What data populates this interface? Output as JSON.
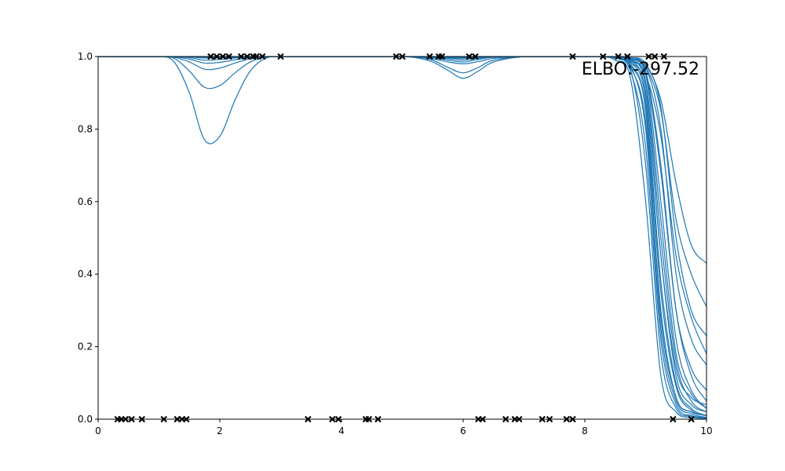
{
  "chart_data": {
    "type": "line",
    "title": "",
    "xlabel": "",
    "ylabel": "",
    "xlim": [
      0,
      10
    ],
    "ylim": [
      0.0,
      1.0
    ],
    "xticks": [
      0,
      2,
      4,
      6,
      8,
      10
    ],
    "xtick_labels": [
      "0",
      "2",
      "4",
      "6",
      "8",
      "10"
    ],
    "yticks": [
      0.0,
      0.2,
      0.4,
      0.6,
      0.8,
      1.0
    ],
    "ytick_labels": [
      "0.0",
      "0.2",
      "0.4",
      "0.6",
      "0.8",
      "1.0"
    ],
    "grid": false,
    "annotation": "ELBO:-297.52",
    "annotation_placement": "top-right",
    "curve_color": "#1f77b4",
    "marker_color": "#000000",
    "marker_style": "x",
    "observations": {
      "y1": [
        1.85,
        1.95,
        2.05,
        2.15,
        2.35,
        2.45,
        2.55,
        2.6,
        2.7,
        3.0,
        4.9,
        5.0,
        5.45,
        5.6,
        5.65,
        6.1,
        6.2,
        7.8,
        8.3,
        8.55,
        8.7,
        9.05,
        9.15,
        9.3
      ],
      "y0": [
        0.32,
        0.38,
        0.45,
        0.55,
        0.72,
        1.08,
        1.3,
        1.38,
        1.45,
        3.45,
        3.85,
        3.95,
        4.4,
        4.45,
        4.6,
        6.25,
        6.32,
        6.7,
        6.85,
        6.92,
        7.3,
        7.42,
        7.7,
        7.8,
        9.45,
        9.75
      ]
    },
    "x": [
      0,
      0.5,
      1.0,
      1.25,
      1.5,
      1.75,
      2.0,
      2.25,
      2.5,
      2.75,
      3.0,
      3.5,
      4.0,
      4.5,
      5.0,
      5.25,
      5.5,
      5.75,
      6.0,
      6.25,
      6.5,
      7.0,
      7.5,
      8.0,
      8.25,
      8.5,
      8.75,
      9.0,
      9.25,
      9.5,
      9.75,
      10.0
    ],
    "series": [
      {
        "values": [
          1,
          1,
          1.0,
          0.985,
          0.9,
          0.77,
          0.78,
          0.88,
          0.96,
          0.995,
          1,
          1,
          1,
          1,
          1,
          1,
          1,
          1,
          1,
          1,
          1,
          1,
          1,
          1,
          1,
          1.0,
          0.99,
          0.95,
          0.78,
          0.45,
          0.28,
          0.18
        ]
      },
      {
        "values": [
          1,
          1,
          1.0,
          0.995,
          0.96,
          0.915,
          0.92,
          0.955,
          0.985,
          0.998,
          1,
          1,
          1,
          1,
          1,
          0.998,
          0.99,
          0.97,
          0.955,
          0.97,
          0.99,
          1,
          1,
          1,
          1,
          1.0,
          0.995,
          0.975,
          0.88,
          0.65,
          0.48,
          0.43
        ]
      },
      {
        "values": [
          1,
          1,
          1.0,
          0.998,
          0.985,
          0.965,
          0.968,
          0.982,
          0.994,
          0.999,
          1,
          1,
          1,
          1,
          1,
          0.996,
          0.985,
          0.962,
          0.94,
          0.96,
          0.985,
          1,
          1,
          1,
          1,
          1.0,
          0.993,
          0.97,
          0.85,
          0.55,
          0.4,
          0.31
        ]
      },
      {
        "values": [
          1,
          1,
          1.0,
          0.999,
          0.993,
          0.982,
          0.984,
          0.991,
          0.997,
          1.0,
          1,
          1,
          1,
          1,
          1,
          0.999,
          0.994,
          0.985,
          0.98,
          0.986,
          0.995,
          1,
          1,
          1,
          1,
          1.0,
          0.99,
          0.95,
          0.6,
          0.22,
          0.08,
          0.03
        ]
      },
      {
        "values": [
          1,
          1,
          1.0,
          1.0,
          0.997,
          0.99,
          0.992,
          0.996,
          0.999,
          1.0,
          1,
          1,
          1,
          1,
          1,
          1.0,
          0.997,
          0.99,
          0.985,
          0.992,
          0.998,
          1,
          1,
          1,
          1,
          1.0,
          0.985,
          0.9,
          0.45,
          0.12,
          0.04,
          0.02
        ]
      },
      {
        "values": [
          1,
          1,
          1.0,
          1.0,
          0.999,
          0.996,
          0.997,
          0.998,
          1.0,
          1.0,
          1,
          1,
          1,
          1,
          1,
          1.0,
          0.998,
          0.994,
          0.99,
          0.995,
          0.999,
          1,
          1,
          1,
          1,
          1.0,
          0.995,
          0.96,
          0.7,
          0.3,
          0.12,
          0.05
        ]
      },
      {
        "values": [
          1,
          1,
          1.0,
          1.0,
          1.0,
          0.998,
          0.998,
          0.999,
          1.0,
          1.0,
          1,
          1,
          1,
          1,
          1,
          1.0,
          0.999,
          0.996,
          0.994,
          0.997,
          1.0,
          1,
          1,
          1,
          1,
          0.998,
          0.97,
          0.82,
          0.3,
          0.06,
          0.02,
          0.01
        ]
      },
      {
        "values": [
          1,
          1,
          1.0,
          1.0,
          1.0,
          0.999,
          0.999,
          1.0,
          1.0,
          1.0,
          1,
          1,
          1,
          1,
          1,
          1.0,
          1.0,
          0.998,
          0.996,
          0.998,
          1.0,
          1,
          1,
          1,
          1,
          1.0,
          0.99,
          0.93,
          0.55,
          0.18,
          0.07,
          0.03
        ]
      },
      {
        "values": [
          1,
          1,
          1.0,
          1.0,
          1.0,
          1.0,
          1.0,
          1.0,
          1.0,
          1.0,
          1,
          1,
          1,
          1,
          1,
          1.0,
          1.0,
          0.999,
          0.998,
          0.999,
          1.0,
          1,
          1,
          1,
          1,
          0.996,
          0.96,
          0.75,
          0.22,
          0.04,
          0.01,
          0.005
        ]
      },
      {
        "values": [
          1,
          1,
          1.0,
          1.0,
          1.0,
          1.0,
          1.0,
          1.0,
          1.0,
          1.0,
          1,
          1,
          1,
          1,
          1,
          1.0,
          1.0,
          1.0,
          0.999,
          1.0,
          1.0,
          1,
          1,
          1,
          1,
          1.0,
          0.985,
          0.88,
          0.38,
          0.1,
          0.03,
          0.01
        ]
      },
      {
        "values": [
          1,
          1,
          1.0,
          1.0,
          1.0,
          1.0,
          1.0,
          1.0,
          1.0,
          1.0,
          1,
          1,
          1,
          1,
          1,
          1.0,
          1.0,
          1.0,
          1.0,
          1.0,
          1.0,
          1,
          1,
          1,
          1,
          0.999,
          0.975,
          0.8,
          0.25,
          0.05,
          0.015,
          0.005
        ]
      },
      {
        "values": [
          1,
          1,
          1.0,
          1.0,
          1.0,
          1.0,
          1.0,
          1.0,
          1.0,
          1.0,
          1,
          1,
          1,
          1,
          1,
          1.0,
          1.0,
          1.0,
          1.0,
          1.0,
          1.0,
          1,
          1,
          1,
          1,
          1.0,
          0.995,
          0.97,
          0.8,
          0.4,
          0.22,
          0.15
        ]
      },
      {
        "values": [
          1,
          1,
          1.0,
          1.0,
          1.0,
          1.0,
          1.0,
          1.0,
          1.0,
          1.0,
          1,
          1,
          1,
          1,
          1,
          1.0,
          1.0,
          1.0,
          1.0,
          1.0,
          1.0,
          1,
          1,
          1,
          1,
          0.99,
          0.94,
          0.6,
          0.12,
          0.02,
          0.005,
          0.002
        ]
      },
      {
        "values": [
          1,
          1,
          1.0,
          1.0,
          1.0,
          1.0,
          1.0,
          1.0,
          1.0,
          1.0,
          1,
          1,
          1,
          1,
          1,
          1.0,
          1.0,
          1.0,
          1.0,
          1.0,
          1.0,
          1,
          1,
          1,
          1,
          1.0,
          0.99,
          0.9,
          0.45,
          0.14,
          0.06,
          0.04
        ]
      },
      {
        "values": [
          1,
          1,
          1.0,
          1.0,
          1.0,
          1.0,
          1.0,
          1.0,
          1.0,
          1.0,
          1,
          1,
          1,
          1,
          1,
          1.0,
          1.0,
          1.0,
          1.0,
          1.0,
          1.0,
          1,
          1,
          1,
          1,
          1.0,
          0.98,
          0.86,
          0.35,
          0.09,
          0.025,
          0.01
        ]
      },
      {
        "values": [
          1,
          1,
          1.0,
          1.0,
          1.0,
          1.0,
          1.0,
          1.0,
          1.0,
          1.0,
          1,
          1,
          1,
          1,
          1,
          1.0,
          1.0,
          1.0,
          1.0,
          1.0,
          1.0,
          1,
          1,
          1,
          1,
          1.0,
          0.993,
          0.95,
          0.68,
          0.3,
          0.14,
          0.08
        ]
      },
      {
        "values": [
          1,
          1,
          1.0,
          1.0,
          1.0,
          1.0,
          1.0,
          1.0,
          1.0,
          1.0,
          1,
          1,
          1,
          1,
          1,
          1.0,
          1.0,
          1.0,
          1.0,
          1.0,
          1.0,
          1,
          1,
          1,
          1,
          0.995,
          0.965,
          0.7,
          0.18,
          0.03,
          0.008,
          0.003
        ]
      },
      {
        "values": [
          1,
          1,
          1.0,
          1.0,
          1.0,
          1.0,
          1.0,
          1.0,
          1.0,
          1.0,
          1,
          1,
          1,
          1,
          1,
          1.0,
          1.0,
          1.0,
          1.0,
          1.0,
          1.0,
          1,
          1,
          1,
          1,
          1.0,
          0.997,
          0.98,
          0.86,
          0.5,
          0.3,
          0.23
        ]
      },
      {
        "values": [
          1,
          1,
          1.0,
          1.0,
          1.0,
          1.0,
          1.0,
          1.0,
          1.0,
          1.0,
          1,
          1,
          1,
          1,
          1,
          1.0,
          1.0,
          1.0,
          1.0,
          1.0,
          1.0,
          1,
          1,
          1,
          1,
          0.997,
          0.975,
          0.85,
          0.28,
          0.06,
          0.02,
          0.01
        ]
      },
      {
        "values": [
          1,
          1,
          1.0,
          1.0,
          1.0,
          1.0,
          1.0,
          1.0,
          1.0,
          1.0,
          1,
          1,
          1,
          1,
          1,
          1.0,
          1.0,
          1.0,
          1.0,
          1.0,
          1.0,
          1,
          1,
          1,
          1,
          1.0,
          0.988,
          0.92,
          0.5,
          0.16,
          0.05,
          0.02
        ]
      }
    ]
  }
}
